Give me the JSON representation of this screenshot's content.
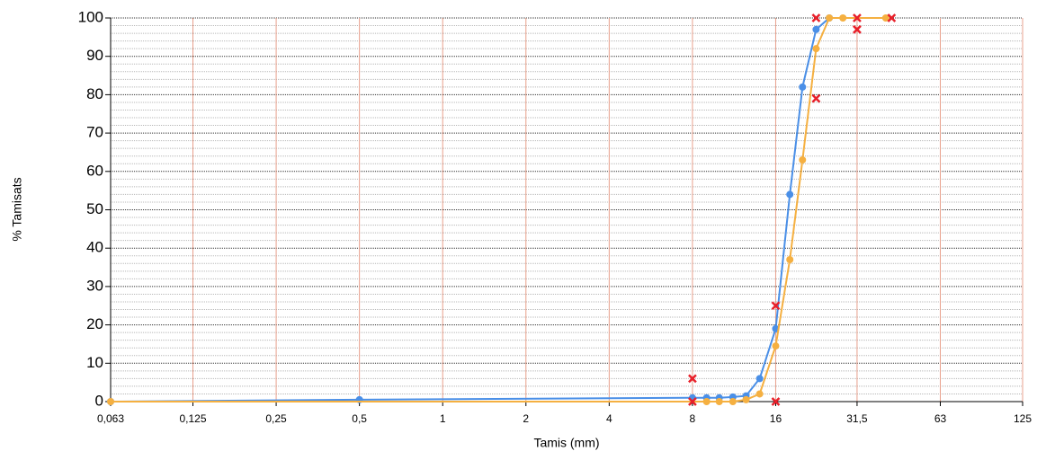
{
  "chart_data": {
    "type": "line",
    "xlabel": "Tamis (mm)",
    "ylabel": "% Tamisats",
    "xlog": true,
    "xlim": [
      0.063,
      125
    ],
    "xticks": [
      {
        "value": 0.063,
        "label": "0,063"
      },
      {
        "value": 0.125,
        "label": "0,125"
      },
      {
        "value": 0.25,
        "label": "0,25"
      },
      {
        "value": 0.5,
        "label": "0,5"
      },
      1,
      2,
      4,
      8,
      16,
      {
        "value": 31.5,
        "label": "31,5"
      },
      63,
      125
    ],
    "ylim": [
      0,
      100
    ],
    "yticks": [
      0,
      10,
      20,
      30,
      40,
      50,
      60,
      70,
      80,
      90,
      100
    ],
    "grid": true,
    "minor_grid_divisions": 5,
    "xgrid_color": "#e8a08c",
    "series": [
      {
        "color": "#4a8fe7",
        "marker": "circle",
        "line": true,
        "x": [
          0.063,
          0.5,
          8,
          9,
          10,
          11.2,
          12.5,
          14,
          16,
          18,
          20,
          22.4,
          25
        ],
        "values": [
          0,
          0.5,
          1,
          1,
          1,
          1.2,
          1.5,
          6,
          19,
          54,
          82,
          97,
          100
        ]
      },
      {
        "color": "#f5b041",
        "marker": "circle",
        "line": true,
        "x": [
          0.063,
          9,
          10,
          11.2,
          12.5,
          14,
          16,
          18,
          20,
          22.4,
          25,
          28,
          40
        ],
        "values": [
          0,
          0,
          0,
          0,
          0.5,
          2,
          14.5,
          37,
          63,
          92,
          100,
          100,
          100
        ]
      },
      {
        "color": "#e8202a",
        "marker": "x",
        "line": false,
        "x": [
          8,
          16,
          22.4,
          31.5,
          42
        ],
        "values": [
          6,
          25,
          100,
          100,
          100
        ]
      },
      {
        "color": "#e8202a",
        "marker": "x",
        "line": false,
        "x": [
          8,
          16,
          22.4,
          31.5
        ],
        "values": [
          0,
          0,
          79,
          97
        ]
      }
    ]
  }
}
